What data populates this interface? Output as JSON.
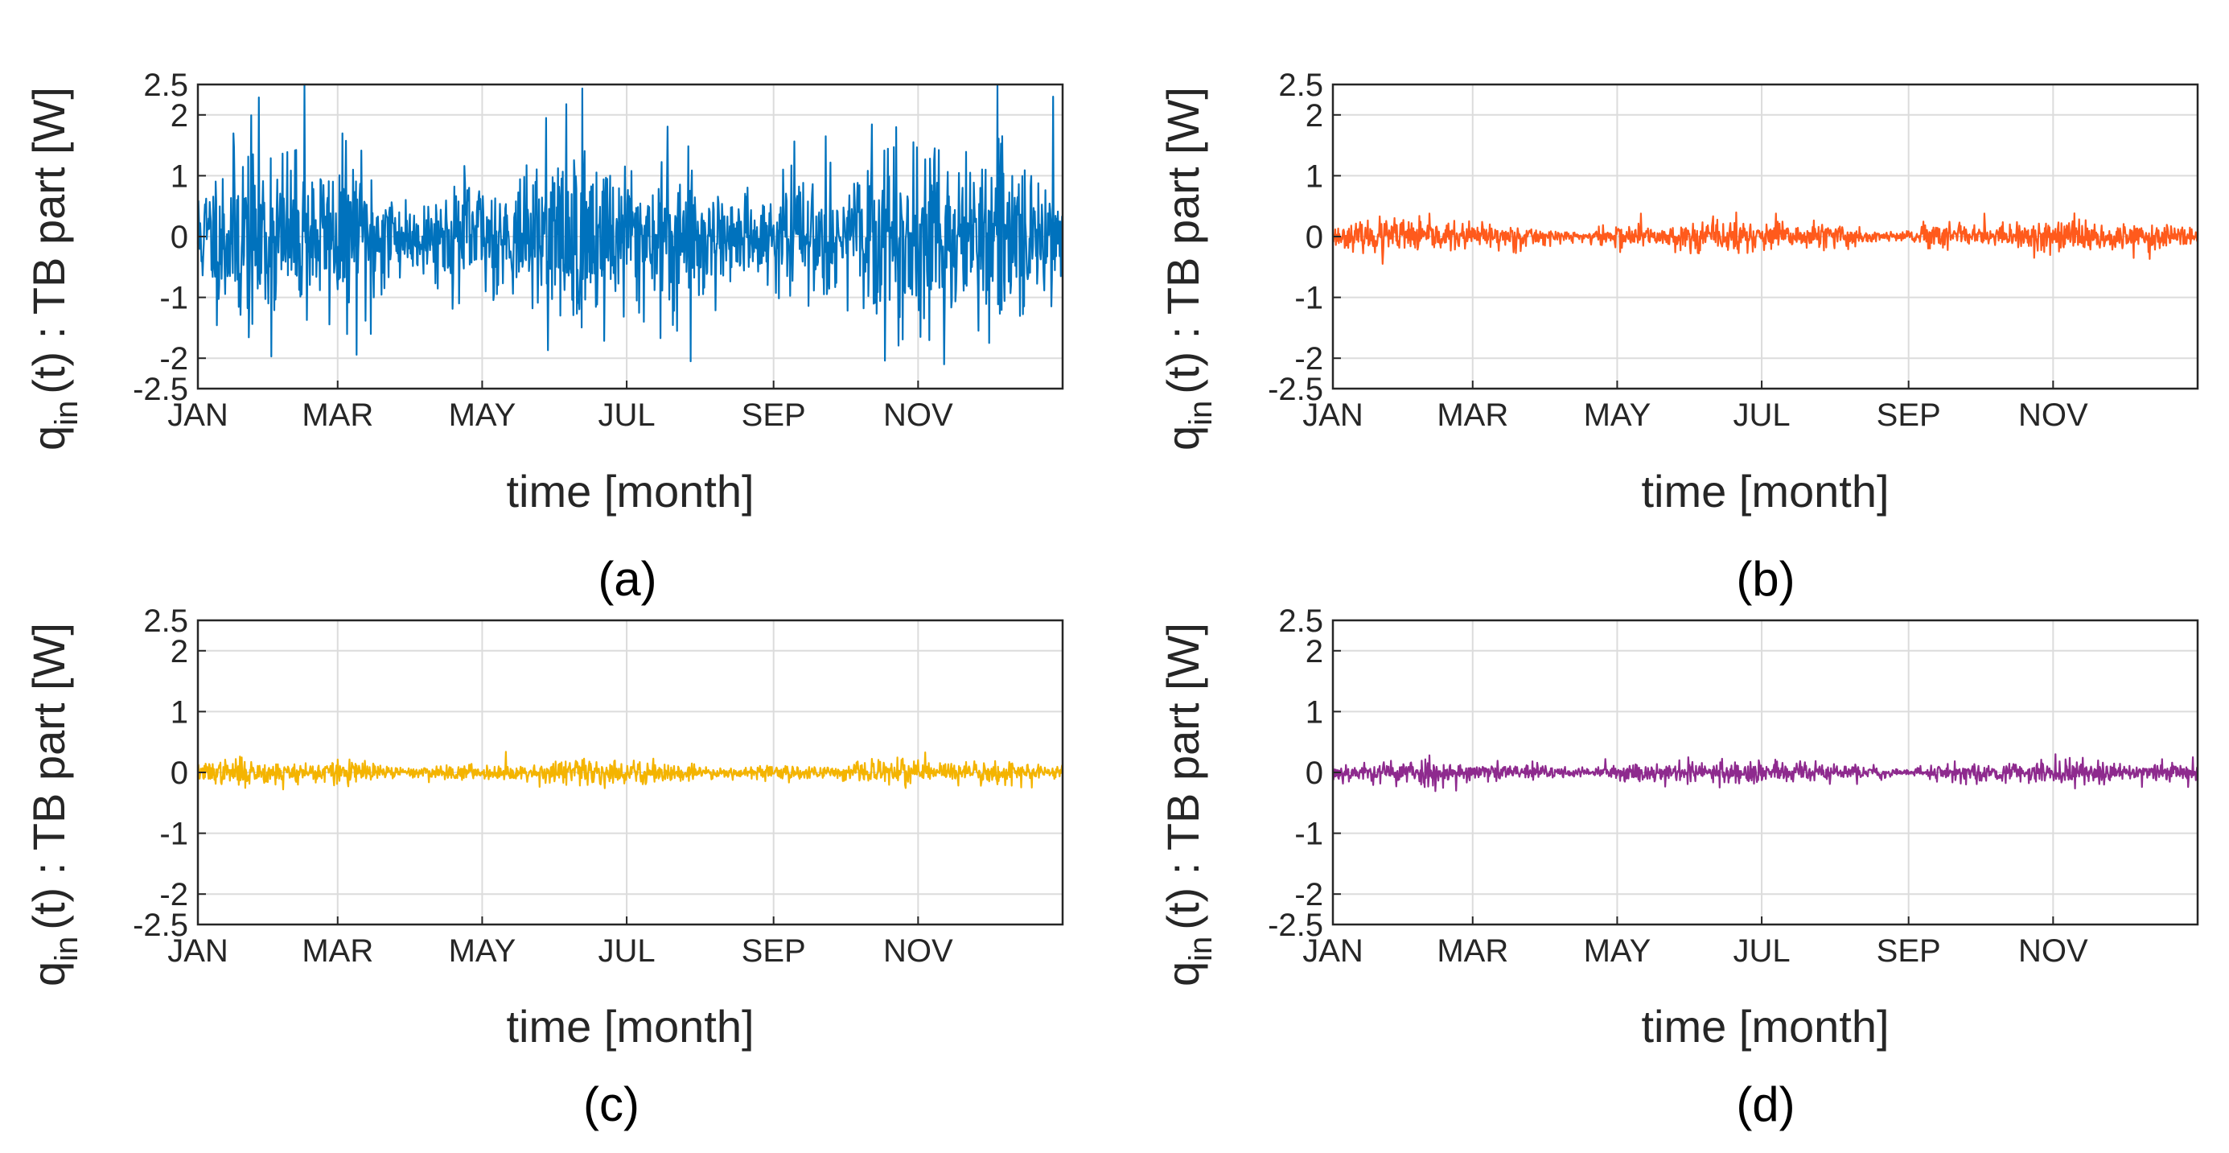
{
  "figure": {
    "caption": ""
  },
  "chart_data": [
    {
      "type": "line",
      "panel_label": "(a)",
      "title": "",
      "xlabel": "time [month]",
      "ylabel": {
        "main": "q",
        "sub": "in",
        "rest": "(t) : TB part [W]"
      },
      "xticks": [
        "JAN",
        "MAR",
        "MAY",
        "JUL",
        "SEP",
        "NOV"
      ],
      "yticks": [
        2.5,
        2,
        1,
        0,
        -1,
        -2,
        -2.5
      ],
      "ylim": [
        -2.5,
        2.5
      ],
      "xlim": [
        0,
        365
      ],
      "grid": true,
      "series": [
        {
          "name": "q_in TB part (a)",
          "color": "#0072BD",
          "amplitude": 0.75,
          "seed": 11,
          "peaks": [
            [
              45,
              2.5
            ],
            [
              147,
              1.95
            ],
            [
              208,
              -2.05
            ],
            [
              265,
              1.65
            ],
            [
              315,
              -2.1
            ],
            [
              361,
              2.3
            ],
            [
              334,
              -1.75
            ],
            [
              73,
              -1.6
            ]
          ]
        }
      ]
    },
    {
      "type": "line",
      "panel_label": "(b)",
      "title": "",
      "xlabel": "time [month]",
      "ylabel": {
        "main": "q",
        "sub": "in",
        "rest": "(t) : TB part [W]"
      },
      "xticks": [
        "JAN",
        "MAR",
        "MAY",
        "JUL",
        "SEP",
        "NOV"
      ],
      "yticks": [
        2.5,
        2,
        1,
        0,
        -1,
        -2,
        -2.5
      ],
      "ylim": [
        -2.5,
        2.5
      ],
      "xlim": [
        0,
        365
      ],
      "grid": true,
      "series": [
        {
          "name": "q_in TB part (b)",
          "color": "#FF5A1C",
          "amplitude": 0.13,
          "seed": 23,
          "peaks": [
            [
              130,
              0.38
            ],
            [
              187,
              0.38
            ],
            [
              275,
              0.38
            ],
            [
              296,
              -0.35
            ],
            [
              21,
              -0.45
            ]
          ]
        }
      ]
    },
    {
      "type": "line",
      "panel_label": "(c)",
      "title": "",
      "xlabel": "time [month]",
      "ylabel": {
        "main": "q",
        "sub": "in",
        "rest": "(t) : TB part [W]"
      },
      "xticks": [
        "JAN",
        "MAR",
        "MAY",
        "JUL",
        "SEP",
        "NOV"
      ],
      "yticks": [
        2.5,
        2,
        1,
        0,
        -1,
        -2,
        -2.5
      ],
      "ylim": [
        -2.5,
        2.5
      ],
      "xlim": [
        0,
        365
      ],
      "grid": true,
      "series": [
        {
          "name": "q_in TB part (c)",
          "color": "#F4B400",
          "amplitude": 0.1,
          "seed": 37,
          "peaks": [
            [
              130,
              0.34
            ],
            [
              307,
              0.33
            ],
            [
              36,
              -0.28
            ],
            [
              352,
              -0.25
            ]
          ]
        }
      ]
    },
    {
      "type": "line",
      "panel_label": "(d)",
      "title": "",
      "xlabel": "time [month]",
      "ylabel": {
        "main": "q",
        "sub": "in",
        "rest": "(t) : TB part [W]"
      },
      "xticks": [
        "JAN",
        "MAR",
        "MAY",
        "JUL",
        "SEP",
        "NOV"
      ],
      "yticks": [
        2.5,
        2,
        1,
        0,
        -1,
        -2,
        -2.5
      ],
      "ylim": [
        -2.5,
        2.5
      ],
      "xlim": [
        0,
        365
      ],
      "grid": true,
      "series": [
        {
          "name": "q_in TB part (d)",
          "color": "#8E2A8E",
          "amplitude": 0.1,
          "seed": 53,
          "peaks": [
            [
              115,
              0.22
            ],
            [
              150,
              0.25
            ],
            [
              305,
              0.3
            ],
            [
              52,
              -0.3
            ],
            [
              363,
              0.25
            ]
          ]
        }
      ]
    }
  ]
}
